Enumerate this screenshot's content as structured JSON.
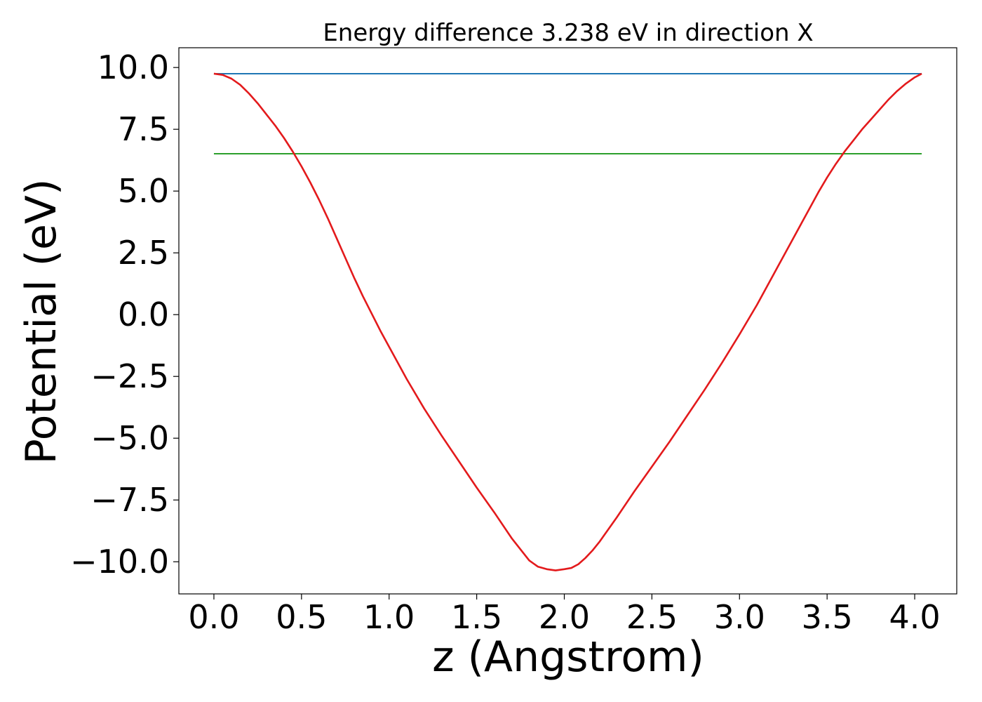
{
  "chart_data": {
    "type": "line",
    "title": "Energy difference 3.238 eV in direction X",
    "xlabel": "z (Angstrom)",
    "ylabel": "Potential (eV)",
    "xlim": [
      -0.2,
      4.24
    ],
    "ylim": [
      -11.3,
      10.8
    ],
    "x_ticks": [
      0.0,
      0.5,
      1.0,
      1.5,
      2.0,
      2.5,
      3.0,
      3.5,
      4.0
    ],
    "x_tick_labels": [
      "0.0",
      "0.5",
      "1.0",
      "1.5",
      "2.0",
      "2.5",
      "3.0",
      "3.5",
      "4.0"
    ],
    "y_ticks": [
      10.0,
      7.5,
      5.0,
      2.5,
      0.0,
      -2.5,
      -5.0,
      -7.5,
      -10.0
    ],
    "y_tick_labels": [
      "10.0",
      "7.5",
      "5.0",
      "2.5",
      "0.0",
      "−2.5",
      "−5.0",
      "−7.5",
      "−10.0"
    ],
    "grid": false,
    "series": [
      {
        "color": "#1f77b4",
        "x": [
          0.0,
          4.04
        ],
        "values": [
          9.75,
          9.75
        ]
      },
      {
        "color": "#2ca02c",
        "x": [
          0.0,
          4.04
        ],
        "values": [
          6.51,
          6.51
        ]
      },
      {
        "color": "#e31a1c",
        "x": [
          0.0,
          0.05,
          0.1,
          0.15,
          0.2,
          0.25,
          0.3,
          0.35,
          0.4,
          0.45,
          0.5,
          0.55,
          0.6,
          0.65,
          0.7,
          0.75,
          0.8,
          0.85,
          0.9,
          0.95,
          1.0,
          1.1,
          1.2,
          1.3,
          1.4,
          1.5,
          1.6,
          1.7,
          1.8,
          1.85,
          1.9,
          1.95,
          2.0,
          2.04,
          2.08,
          2.12,
          2.16,
          2.2,
          2.25,
          2.3,
          2.4,
          2.5,
          2.6,
          2.7,
          2.8,
          2.9,
          3.0,
          3.1,
          3.2,
          3.3,
          3.4,
          3.45,
          3.5,
          3.55,
          3.6,
          3.65,
          3.7,
          3.75,
          3.8,
          3.85,
          3.9,
          3.95,
          4.0,
          4.04
        ],
        "values": [
          9.75,
          9.7,
          9.55,
          9.3,
          8.95,
          8.55,
          8.1,
          7.65,
          7.15,
          6.6,
          6.0,
          5.35,
          4.65,
          3.9,
          3.1,
          2.3,
          1.5,
          0.75,
          0.05,
          -0.65,
          -1.3,
          -2.6,
          -3.8,
          -4.9,
          -5.95,
          -7.0,
          -8.0,
          -9.05,
          -9.95,
          -10.2,
          -10.3,
          -10.35,
          -10.3,
          -10.25,
          -10.1,
          -9.85,
          -9.55,
          -9.2,
          -8.7,
          -8.2,
          -7.15,
          -6.15,
          -5.15,
          -4.1,
          -3.05,
          -1.95,
          -0.8,
          0.4,
          1.7,
          3.0,
          4.3,
          4.95,
          5.55,
          6.1,
          6.6,
          7.05,
          7.5,
          7.9,
          8.3,
          8.7,
          9.05,
          9.35,
          9.6,
          9.75
        ]
      }
    ]
  }
}
